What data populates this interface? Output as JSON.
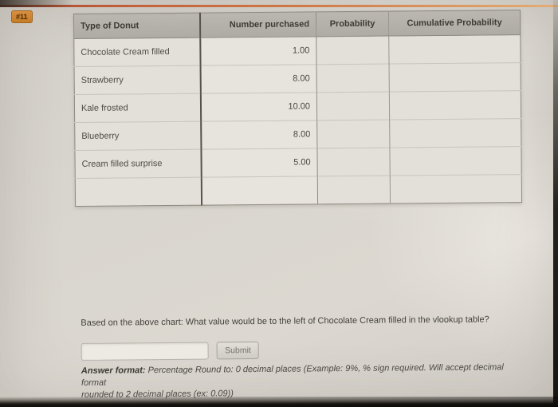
{
  "badge": {
    "label": "#11"
  },
  "table": {
    "columns": [
      {
        "label": "Type of Donut"
      },
      {
        "label": "Number purchased"
      },
      {
        "label": "Probability"
      },
      {
        "label": "Cumulative Probability"
      }
    ],
    "rows": [
      {
        "type": "Chocolate Cream filled",
        "number": "1.00",
        "probability": "",
        "cumulative": ""
      },
      {
        "type": "Strawberry",
        "number": "8.00",
        "probability": "",
        "cumulative": ""
      },
      {
        "type": "Kale frosted",
        "number": "10.00",
        "probability": "",
        "cumulative": ""
      },
      {
        "type": "Blueberry",
        "number": "8.00",
        "probability": "",
        "cumulative": ""
      },
      {
        "type": "Cream filled surprise",
        "number": "5.00",
        "probability": "",
        "cumulative": ""
      },
      {
        "type": "",
        "number": "",
        "probability": "",
        "cumulative": ""
      }
    ]
  },
  "question": {
    "text": "Based on the above chart: What value would be to the left of Chocolate Cream filled in the vlookup table?"
  },
  "answer_input": {
    "value": "",
    "placeholder": ""
  },
  "submit": {
    "label": "Submit"
  },
  "answer_format": {
    "label": "Answer format:",
    "line1": "Percentage Round to: 0 decimal places (Example: 9%, % sign required. Will accept decimal format",
    "line2": "rounded to 2 decimal places (ex: 0.09))"
  },
  "colors": {
    "badge_orange": "#cd8430",
    "accent_line_orange": "#c8623c",
    "table_header_gray": "#b3b0a9",
    "page_background": "#d7d4cd"
  }
}
